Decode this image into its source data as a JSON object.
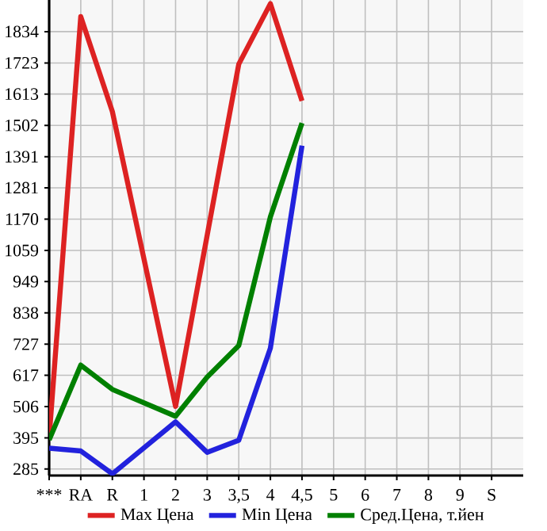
{
  "chart_data": {
    "type": "line",
    "categories": [
      "***",
      "RA",
      "R",
      "1",
      "2",
      "3",
      "3,5",
      "4",
      "4,5",
      "5",
      "6",
      "7",
      "8",
      "9",
      "S"
    ],
    "series": [
      {
        "name": "Max Цена",
        "color": "#dd2222",
        "values": [
          395,
          1887,
          1551,
          null,
          507,
          null,
          1719,
          1933,
          1589,
          null,
          null,
          null,
          null,
          null,
          null
        ]
      },
      {
        "name": "Min Цена",
        "color": "#2222dd",
        "values": [
          359,
          349,
          268,
          null,
          452,
          344,
          387,
          713,
          1430,
          null,
          null,
          null,
          null,
          null,
          null
        ]
      },
      {
        "name": "Сред.Цена, т.йен",
        "color": "#008000",
        "values": [
          388,
          653,
          567,
          null,
          472,
          611,
          722,
          1178,
          1510,
          null,
          null,
          null,
          null,
          null,
          null
        ]
      }
    ],
    "ylim": [
      262,
      1946
    ],
    "yticks": [
      285,
      395,
      506,
      617,
      727,
      838,
      949,
      1059,
      1170,
      1281,
      1391,
      1502,
      1613,
      1723,
      1834
    ],
    "grid": true,
    "legend": "bottom",
    "marker": "none",
    "line_style": "solid"
  }
}
